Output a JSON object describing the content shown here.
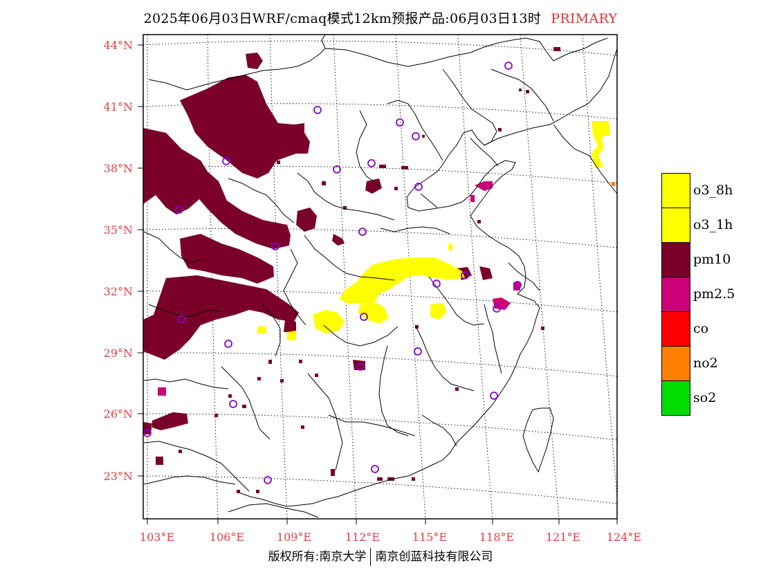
{
  "header": {
    "title": "2025年06月03日WRF/cmaq模式12km预报产品:06月03日13时",
    "tag": "PRIMARY"
  },
  "axes": {
    "lat_labels": [
      "44°N",
      "41°N",
      "38°N",
      "35°N",
      "32°N",
      "29°N",
      "26°N",
      "23°N"
    ],
    "lon_labels": [
      "103°E",
      "106°E",
      "109°E",
      "112°E",
      "115°E",
      "118°E",
      "121°E",
      "124°E"
    ]
  },
  "legend": {
    "items": [
      {
        "label": "o3_8h",
        "color": "#ffff00"
      },
      {
        "label": "o3_1h",
        "color": "#ffff00"
      },
      {
        "label": "pm10",
        "color": "#7a0029"
      },
      {
        "label": "pm2.5",
        "color": "#cc0077"
      },
      {
        "label": "co",
        "color": "#ff0000"
      },
      {
        "label": "no2",
        "color": "#ff7f00"
      },
      {
        "label": "so2",
        "color": "#00dd00"
      }
    ]
  },
  "colors": {
    "tick_label": "#e04040",
    "station_marker": "#8a00d0"
  },
  "footer": {
    "left": "版权所有:南京大学",
    "right": "南京创蓝科技有限公司"
  }
}
